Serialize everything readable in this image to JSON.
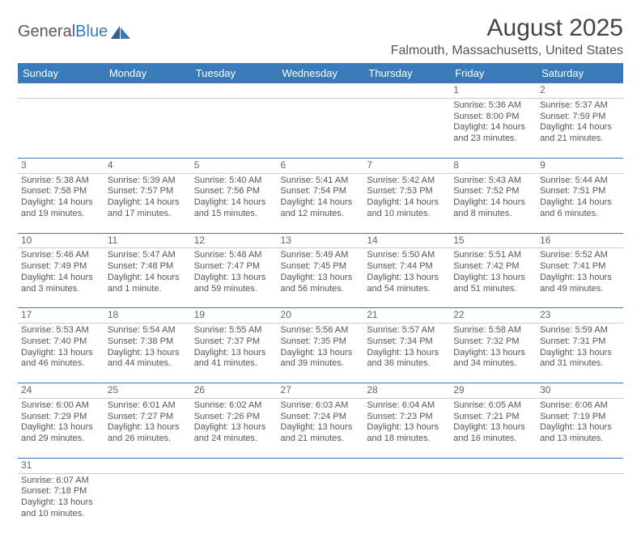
{
  "brand": {
    "name1": "General",
    "name2": "Blue"
  },
  "title": "August 2025",
  "location": "Falmouth, Massachusetts, United States",
  "colors": {
    "accent": "#3a7ab8",
    "text": "#555555",
    "divider": "#cccccc",
    "bg": "#ffffff"
  },
  "weekdays": [
    "Sunday",
    "Monday",
    "Tuesday",
    "Wednesday",
    "Thursday",
    "Friday",
    "Saturday"
  ],
  "weeks": [
    [
      null,
      null,
      null,
      null,
      null,
      {
        "n": "1",
        "sr": "Sunrise: 5:36 AM",
        "ss": "Sunset: 8:00 PM",
        "d1": "Daylight: 14 hours",
        "d2": "and 23 minutes."
      },
      {
        "n": "2",
        "sr": "Sunrise: 5:37 AM",
        "ss": "Sunset: 7:59 PM",
        "d1": "Daylight: 14 hours",
        "d2": "and 21 minutes."
      }
    ],
    [
      {
        "n": "3",
        "sr": "Sunrise: 5:38 AM",
        "ss": "Sunset: 7:58 PM",
        "d1": "Daylight: 14 hours",
        "d2": "and 19 minutes."
      },
      {
        "n": "4",
        "sr": "Sunrise: 5:39 AM",
        "ss": "Sunset: 7:57 PM",
        "d1": "Daylight: 14 hours",
        "d2": "and 17 minutes."
      },
      {
        "n": "5",
        "sr": "Sunrise: 5:40 AM",
        "ss": "Sunset: 7:56 PM",
        "d1": "Daylight: 14 hours",
        "d2": "and 15 minutes."
      },
      {
        "n": "6",
        "sr": "Sunrise: 5:41 AM",
        "ss": "Sunset: 7:54 PM",
        "d1": "Daylight: 14 hours",
        "d2": "and 12 minutes."
      },
      {
        "n": "7",
        "sr": "Sunrise: 5:42 AM",
        "ss": "Sunset: 7:53 PM",
        "d1": "Daylight: 14 hours",
        "d2": "and 10 minutes."
      },
      {
        "n": "8",
        "sr": "Sunrise: 5:43 AM",
        "ss": "Sunset: 7:52 PM",
        "d1": "Daylight: 14 hours",
        "d2": "and 8 minutes."
      },
      {
        "n": "9",
        "sr": "Sunrise: 5:44 AM",
        "ss": "Sunset: 7:51 PM",
        "d1": "Daylight: 14 hours",
        "d2": "and 6 minutes."
      }
    ],
    [
      {
        "n": "10",
        "sr": "Sunrise: 5:46 AM",
        "ss": "Sunset: 7:49 PM",
        "d1": "Daylight: 14 hours",
        "d2": "and 3 minutes."
      },
      {
        "n": "11",
        "sr": "Sunrise: 5:47 AM",
        "ss": "Sunset: 7:48 PM",
        "d1": "Daylight: 14 hours",
        "d2": "and 1 minute."
      },
      {
        "n": "12",
        "sr": "Sunrise: 5:48 AM",
        "ss": "Sunset: 7:47 PM",
        "d1": "Daylight: 13 hours",
        "d2": "and 59 minutes."
      },
      {
        "n": "13",
        "sr": "Sunrise: 5:49 AM",
        "ss": "Sunset: 7:45 PM",
        "d1": "Daylight: 13 hours",
        "d2": "and 56 minutes."
      },
      {
        "n": "14",
        "sr": "Sunrise: 5:50 AM",
        "ss": "Sunset: 7:44 PM",
        "d1": "Daylight: 13 hours",
        "d2": "and 54 minutes."
      },
      {
        "n": "15",
        "sr": "Sunrise: 5:51 AM",
        "ss": "Sunset: 7:42 PM",
        "d1": "Daylight: 13 hours",
        "d2": "and 51 minutes."
      },
      {
        "n": "16",
        "sr": "Sunrise: 5:52 AM",
        "ss": "Sunset: 7:41 PM",
        "d1": "Daylight: 13 hours",
        "d2": "and 49 minutes."
      }
    ],
    [
      {
        "n": "17",
        "sr": "Sunrise: 5:53 AM",
        "ss": "Sunset: 7:40 PM",
        "d1": "Daylight: 13 hours",
        "d2": "and 46 minutes."
      },
      {
        "n": "18",
        "sr": "Sunrise: 5:54 AM",
        "ss": "Sunset: 7:38 PM",
        "d1": "Daylight: 13 hours",
        "d2": "and 44 minutes."
      },
      {
        "n": "19",
        "sr": "Sunrise: 5:55 AM",
        "ss": "Sunset: 7:37 PM",
        "d1": "Daylight: 13 hours",
        "d2": "and 41 minutes."
      },
      {
        "n": "20",
        "sr": "Sunrise: 5:56 AM",
        "ss": "Sunset: 7:35 PM",
        "d1": "Daylight: 13 hours",
        "d2": "and 39 minutes."
      },
      {
        "n": "21",
        "sr": "Sunrise: 5:57 AM",
        "ss": "Sunset: 7:34 PM",
        "d1": "Daylight: 13 hours",
        "d2": "and 36 minutes."
      },
      {
        "n": "22",
        "sr": "Sunrise: 5:58 AM",
        "ss": "Sunset: 7:32 PM",
        "d1": "Daylight: 13 hours",
        "d2": "and 34 minutes."
      },
      {
        "n": "23",
        "sr": "Sunrise: 5:59 AM",
        "ss": "Sunset: 7:31 PM",
        "d1": "Daylight: 13 hours",
        "d2": "and 31 minutes."
      }
    ],
    [
      {
        "n": "24",
        "sr": "Sunrise: 6:00 AM",
        "ss": "Sunset: 7:29 PM",
        "d1": "Daylight: 13 hours",
        "d2": "and 29 minutes."
      },
      {
        "n": "25",
        "sr": "Sunrise: 6:01 AM",
        "ss": "Sunset: 7:27 PM",
        "d1": "Daylight: 13 hours",
        "d2": "and 26 minutes."
      },
      {
        "n": "26",
        "sr": "Sunrise: 6:02 AM",
        "ss": "Sunset: 7:26 PM",
        "d1": "Daylight: 13 hours",
        "d2": "and 24 minutes."
      },
      {
        "n": "27",
        "sr": "Sunrise: 6:03 AM",
        "ss": "Sunset: 7:24 PM",
        "d1": "Daylight: 13 hours",
        "d2": "and 21 minutes."
      },
      {
        "n": "28",
        "sr": "Sunrise: 6:04 AM",
        "ss": "Sunset: 7:23 PM",
        "d1": "Daylight: 13 hours",
        "d2": "and 18 minutes."
      },
      {
        "n": "29",
        "sr": "Sunrise: 6:05 AM",
        "ss": "Sunset: 7:21 PM",
        "d1": "Daylight: 13 hours",
        "d2": "and 16 minutes."
      },
      {
        "n": "30",
        "sr": "Sunrise: 6:06 AM",
        "ss": "Sunset: 7:19 PM",
        "d1": "Daylight: 13 hours",
        "d2": "and 13 minutes."
      }
    ],
    [
      {
        "n": "31",
        "sr": "Sunrise: 6:07 AM",
        "ss": "Sunset: 7:18 PM",
        "d1": "Daylight: 13 hours",
        "d2": "and 10 minutes."
      },
      null,
      null,
      null,
      null,
      null,
      null
    ]
  ]
}
